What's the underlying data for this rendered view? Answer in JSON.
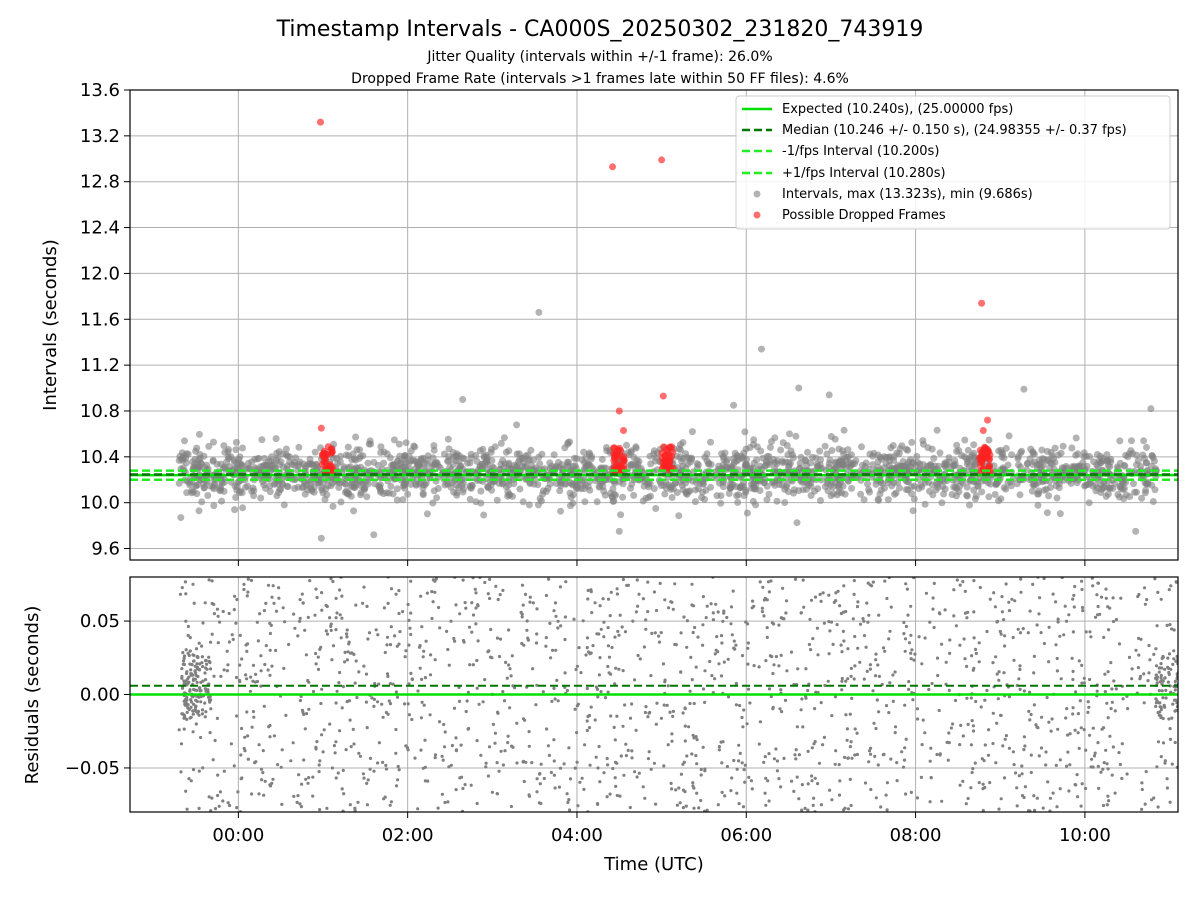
{
  "title": "Timestamp Intervals - CA000S_20250302_231820_743919",
  "subtitle_1": "Jitter Quality (intervals within +/-1 frame): 26.0%",
  "subtitle_2": "Dropped Frame Rate (intervals >1 frames late within 50 FF files): 4.6%",
  "colors": {
    "expected": "#00e000",
    "median": "#007700",
    "fps_bounds": "#22ee22",
    "intervals": "#808080",
    "dropped": "#ff2222",
    "grid": "#b0b0b0"
  },
  "chart_data": [
    {
      "type": "scatter",
      "ylabel": "Intervals (seconds)",
      "ylim": [
        9.5,
        13.6
      ],
      "xlim_hours": [
        -1.28,
        11.1
      ],
      "yticks": [
        9.6,
        10.0,
        10.4,
        10.8,
        11.2,
        11.6,
        12.0,
        12.4,
        12.8,
        13.2,
        13.6
      ],
      "ytick_labels": [
        "9.6",
        "10.0",
        "10.4",
        "10.8",
        "11.2",
        "11.6",
        "12.0",
        "12.4",
        "12.8",
        "13.2",
        "13.6"
      ],
      "grid": true,
      "legend_position": "top-right",
      "legend": [
        {
          "label": "Expected (10.240s), (25.00000 fps)",
          "style": "solid",
          "color": "#00e000"
        },
        {
          "label": "Median (10.246 +/- 0.150 s), (24.98355 +/- 0.37 fps)",
          "style": "dashed",
          "color": "#007700"
        },
        {
          "label": "-1/fps Interval (10.200s)",
          "style": "dashed",
          "color": "#22ee22"
        },
        {
          "label": "+1/fps Interval (10.280s)",
          "style": "dashed",
          "color": "#22ee22"
        },
        {
          "label": "Intervals, max (13.323s), min (9.686s)",
          "style": "marker",
          "color": "#808080"
        },
        {
          "label": "Possible Dropped Frames",
          "style": "marker",
          "color": "#ff2222"
        }
      ],
      "reference_lines": {
        "expected": 10.24,
        "median": 10.246,
        "minus_fps": 10.2,
        "plus_fps": 10.28
      },
      "interval_cloud": {
        "x_start": -0.7,
        "x_end": 10.85,
        "center": 10.26,
        "spread": 0.12,
        "count": 2200
      },
      "interval_outliers": [
        {
          "x": -0.68,
          "y": 9.87
        },
        {
          "x": 0.98,
          "y": 9.69
        },
        {
          "x": 3.55,
          "y": 11.66
        },
        {
          "x": 2.65,
          "y": 10.9
        },
        {
          "x": 6.18,
          "y": 11.34
        },
        {
          "x": 6.62,
          "y": 11.0
        },
        {
          "x": 6.98,
          "y": 10.94
        },
        {
          "x": 9.28,
          "y": 10.99
        },
        {
          "x": 5.85,
          "y": 10.85
        },
        {
          "x": 10.78,
          "y": 10.82
        },
        {
          "x": 1.6,
          "y": 9.72
        },
        {
          "x": 4.5,
          "y": 9.75
        },
        {
          "x": 10.6,
          "y": 9.75
        }
      ],
      "dropped_clusters": [
        {
          "x": 1.05,
          "count": 34
        },
        {
          "x": 4.5,
          "count": 34
        },
        {
          "x": 5.07,
          "count": 34
        },
        {
          "x": 8.82,
          "count": 34
        }
      ],
      "dropped_outliers": [
        {
          "x": 0.97,
          "y": 13.32
        },
        {
          "x": 4.42,
          "y": 12.93
        },
        {
          "x": 5.0,
          "y": 12.99
        },
        {
          "x": 8.78,
          "y": 11.74
        },
        {
          "x": 5.02,
          "y": 10.93
        },
        {
          "x": 4.5,
          "y": 10.8
        },
        {
          "x": 4.55,
          "y": 10.63
        },
        {
          "x": 8.85,
          "y": 10.72
        },
        {
          "x": 8.8,
          "y": 10.63
        },
        {
          "x": 0.98,
          "y": 10.65
        }
      ]
    },
    {
      "type": "scatter",
      "ylabel": "Residuals (seconds)",
      "xlabel": "Time (UTC)",
      "ylim": [
        -0.08,
        0.08
      ],
      "yticks": [
        -0.05,
        0.0,
        0.05
      ],
      "ytick_labels": [
        "−0.05",
        "0.00",
        "0.05"
      ],
      "xticks_hours": [
        0,
        2,
        4,
        6,
        8,
        10
      ],
      "xtick_labels": [
        "00:00",
        "02:00",
        "04:00",
        "06:00",
        "08:00",
        "10:00"
      ],
      "grid": true,
      "reference_lines": {
        "expected": 0.0,
        "median": 0.006
      },
      "residual_cloud": {
        "x_start": -0.7,
        "x_end": 11.1,
        "count": 1700
      },
      "edge_clusters": [
        {
          "x": -0.5,
          "spread": 0.022,
          "count": 140
        },
        {
          "x": 11.0,
          "spread": 0.022,
          "count": 90
        }
      ]
    }
  ]
}
